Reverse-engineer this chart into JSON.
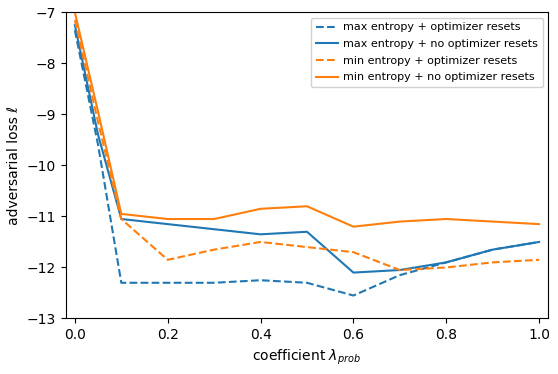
{
  "x": [
    0.0,
    0.05,
    0.1,
    0.2,
    0.3,
    0.4,
    0.5,
    0.6,
    0.7,
    0.8,
    0.9,
    1.0
  ],
  "max_entropy_opt_resets": [
    -7.35,
    -9.6,
    -12.3,
    -12.3,
    -12.3,
    -12.25,
    -12.3,
    -12.55,
    -12.15,
    -11.9,
    -11.65,
    -11.5
  ],
  "max_entropy_no_opt_resets": [
    -7.25,
    -9.4,
    -11.05,
    -11.15,
    -11.25,
    -11.35,
    -11.3,
    -12.1,
    -12.05,
    -11.9,
    -11.65,
    -11.5
  ],
  "min_entropy_opt_resets": [
    -7.15,
    -9.15,
    -11.05,
    -11.85,
    -11.65,
    -11.5,
    -11.6,
    -11.7,
    -12.05,
    -12.0,
    -11.9,
    -11.85
  ],
  "min_entropy_no_opt_resets": [
    -7.0,
    -8.95,
    -10.95,
    -11.05,
    -11.05,
    -10.85,
    -10.8,
    -11.2,
    -11.1,
    -11.05,
    -11.1,
    -11.15
  ],
  "blue_color": "#1f77b4",
  "orange_color": "#ff7f0e",
  "ylim": [
    -13,
    -7
  ],
  "xlim": [
    -0.02,
    1.02
  ],
  "yticks": [
    -13,
    -12,
    -11,
    -10,
    -9,
    -8,
    -7
  ],
  "xticks": [
    0.0,
    0.2,
    0.4,
    0.6,
    0.8,
    1.0
  ],
  "ylabel": "adversarial loss ℓ",
  "xlabel": "coefficient $\\lambda_{prob}$",
  "legend_labels": [
    "max entropy + optimizer resets",
    "max entropy + no optimizer resets",
    "min entropy + optimizer resets",
    "min entropy + no optimizer resets"
  ],
  "figsize": [
    5.58,
    3.74
  ],
  "dpi": 100
}
